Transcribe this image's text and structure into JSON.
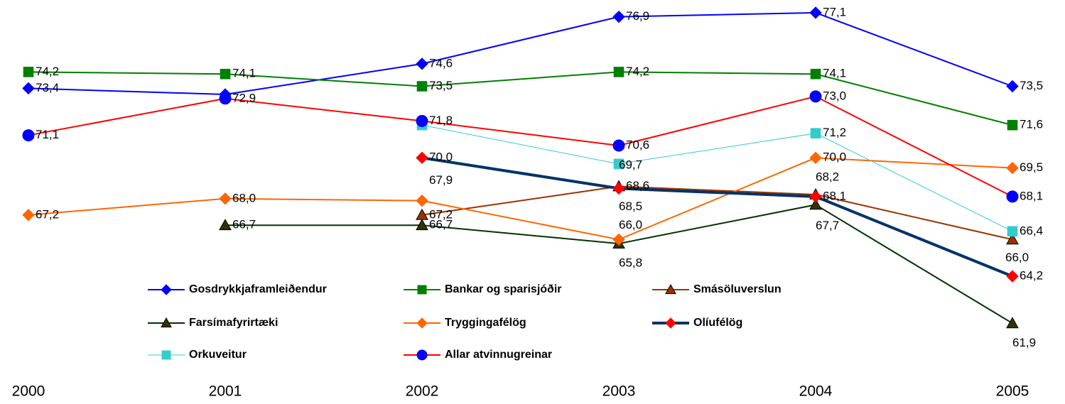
{
  "chart_data": {
    "type": "line",
    "categories": [
      "2000",
      "2001",
      "2002",
      "2003",
      "2004",
      "2005"
    ],
    "ylim": [
      60,
      78
    ],
    "legend": "bottom",
    "series": [
      {
        "name": "Gosdrykkjaframleiðendur",
        "color": "#0000ff",
        "marker": "diamond",
        "marker_color": "#0000ff",
        "width": 2,
        "values": [
          73.4,
          73.1,
          74.6,
          76.9,
          77.1,
          73.5
        ],
        "value_labels": [
          "73,4",
          null,
          "74,6",
          "76,9",
          "77,1",
          "73,5"
        ]
      },
      {
        "name": "Bankar og sparisjóðir",
        "color": "#008000",
        "marker": "square",
        "marker_color": "#008000",
        "width": 2,
        "values": [
          74.2,
          74.1,
          73.5,
          74.2,
          74.1,
          71.6
        ],
        "value_labels": [
          "74,2",
          "74,1",
          "73,5",
          "74,2",
          "74,1",
          "71,6"
        ]
      },
      {
        "name": "Smásöluverslun",
        "color": "#993300",
        "marker": "triangle",
        "marker_color": "#993300",
        "width": 2,
        "values": [
          null,
          null,
          67.2,
          68.6,
          68.2,
          66.0
        ],
        "value_labels": [
          null,
          null,
          "67,2",
          "68,6",
          "68,2",
          "66,0"
        ]
      },
      {
        "name": "Farsímafyrirtæki",
        "color": "#003300",
        "marker": "triangle",
        "marker_color": "#333300",
        "width": 2,
        "values": [
          null,
          66.7,
          66.7,
          65.8,
          67.7,
          61.9
        ],
        "value_labels": [
          null,
          "66,7",
          "66,7",
          "65,8",
          "67,7",
          "61,9"
        ]
      },
      {
        "name": "Tryggingafélög",
        "color": "#ff6600",
        "marker": "diamond",
        "marker_color": "#ff6600",
        "width": 2,
        "values": [
          67.2,
          68.0,
          67.9,
          66.0,
          70.0,
          69.5
        ],
        "value_labels": [
          "67,2",
          "68,0",
          "67,9",
          "66,0",
          "70,0",
          "69,5"
        ]
      },
      {
        "name": "Olíufélög",
        "color": "#003366",
        "marker": "diamond",
        "marker_color": "#ff0000",
        "width": 4,
        "values": [
          null,
          null,
          70.0,
          68.5,
          68.1,
          64.2
        ],
        "value_labels": [
          null,
          null,
          "70,0",
          "68,5",
          "68,1",
          "64,2"
        ]
      },
      {
        "name": "Orkuveitur",
        "color": "#33cccc",
        "marker": "square",
        "marker_color": "#33cccc",
        "width": 1,
        "values": [
          null,
          null,
          71.6,
          69.7,
          71.2,
          66.4
        ],
        "value_labels": [
          null,
          null,
          null,
          "69,7",
          "71,2",
          "66,4"
        ]
      },
      {
        "name": "Allar atvinnugreinar",
        "color": "#ff0000",
        "marker": "circle",
        "marker_color": "#0000ff",
        "width": 2,
        "values": [
          71.1,
          72.9,
          71.8,
          70.6,
          73.0,
          68.1
        ],
        "value_labels": [
          "71,1",
          "72,9",
          "71,8",
          "70,6",
          "73,0",
          "68,1"
        ]
      }
    ]
  }
}
